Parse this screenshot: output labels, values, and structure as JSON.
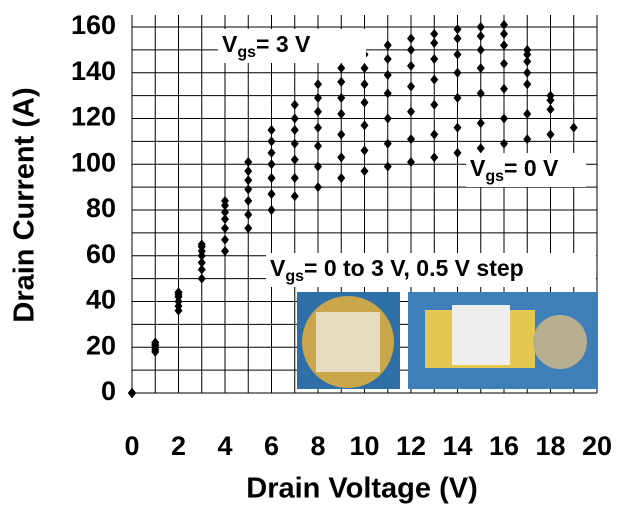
{
  "chart_data": {
    "type": "scatter",
    "x_label": "Drain Voltage (V)",
    "y_label": "Drain Current (A)",
    "xlim": [
      0,
      20
    ],
    "ylim": [
      0,
      160
    ],
    "xticks": [
      0,
      2,
      4,
      6,
      8,
      10,
      12,
      14,
      16,
      18,
      20
    ],
    "yticks": [
      0,
      20,
      40,
      60,
      80,
      100,
      120,
      140,
      160
    ],
    "grid": true,
    "minor_grid": true,
    "marker": "diamond",
    "x": [
      0,
      1,
      2,
      3,
      4,
      5,
      6,
      7,
      8,
      9,
      10,
      11,
      12,
      13,
      14,
      15,
      16,
      17,
      18,
      19
    ],
    "series": [
      {
        "color": "#000000",
        "values": [
          0,
          18,
          36,
          50,
          62,
          72,
          80,
          86,
          90,
          94,
          97,
          99,
          101,
          103,
          105,
          107,
          109,
          111,
          113,
          116
        ]
      },
      {
        "color": "#000000",
        "values": [
          0,
          19,
          38,
          54,
          67,
          78,
          87,
          94,
          99,
          103,
          106,
          109,
          111,
          113,
          116,
          118,
          120,
          122,
          124,
          null
        ]
      },
      {
        "color": "#000000",
        "values": [
          0,
          20,
          40,
          57,
          72,
          84,
          94,
          102,
          108,
          113,
          117,
          120,
          123,
          126,
          129,
          131,
          133,
          135,
          null,
          null
        ]
      },
      {
        "color": "#000000",
        "values": [
          0,
          21,
          42,
          60,
          76,
          89,
          100,
          109,
          116,
          122,
          127,
          131,
          134,
          137,
          140,
          142,
          144,
          140,
          null,
          null
        ]
      },
      {
        "color": "#000000",
        "values": [
          0,
          21,
          43,
          62,
          79,
          93,
          105,
          115,
          123,
          129,
          135,
          139,
          143,
          146,
          148,
          150,
          152,
          145,
          130,
          null
        ]
      },
      {
        "color": "#000000",
        "values": [
          0,
          22,
          44,
          64,
          82,
          97,
          110,
          120,
          129,
          136,
          142,
          146,
          150,
          153,
          155,
          156,
          157,
          148,
          null,
          null
        ]
      },
      {
        "color": "#000000",
        "values": [
          0,
          22,
          44,
          65,
          84,
          101,
          115,
          126,
          135,
          142,
          148,
          152,
          155,
          157,
          159,
          160,
          161,
          150,
          128,
          null
        ]
      }
    ],
    "annotations": [
      {
        "main": "V",
        "sub": "gs",
        "rest": "= 3 V"
      },
      {
        "main": "V",
        "sub": "gs",
        "rest": "= 0 V"
      },
      {
        "main": "V",
        "sub": "gs",
        "rest": "= 0 to 3 V, 0.5 V step"
      }
    ]
  }
}
